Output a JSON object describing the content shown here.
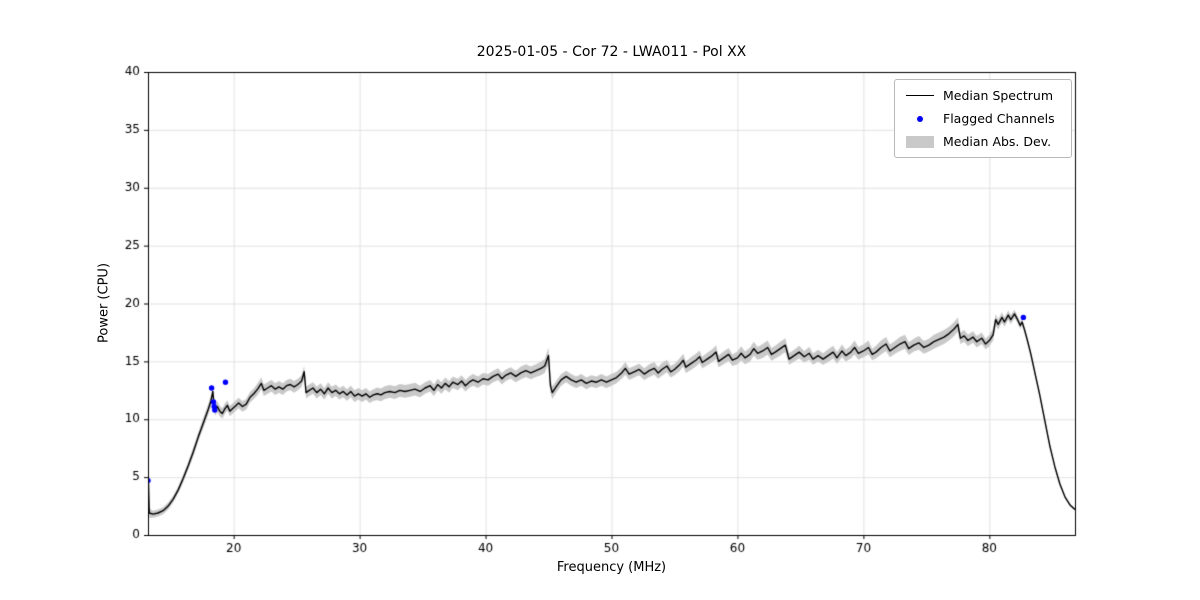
{
  "figure": {
    "title": "2025-01-05 - Cor 72 - LWA011 - Pol XX"
  },
  "chart_data": {
    "type": "line",
    "title": "2025-01-05 - Cor 72 - LWA011 - Pol XX",
    "xlabel": "Frequency (MHz)",
    "ylabel": "Power (CPU)",
    "xlim": [
      13.2,
      86.8
    ],
    "ylim": [
      0,
      40
    ],
    "xticks": [
      20,
      30,
      40,
      50,
      60,
      70,
      80
    ],
    "yticks": [
      0,
      5,
      10,
      15,
      20,
      25,
      30,
      35,
      40
    ],
    "grid": true,
    "grid_color": "#dcdcdc",
    "legend_position": "upper right",
    "series": [
      {
        "name": "Median Spectrum",
        "type": "line",
        "color": "#000000",
        "points": [
          [
            13.0,
            1.8,
            0.3
          ],
          [
            13.1,
            1.7,
            0.3
          ],
          [
            13.2,
            6.2,
            1.3
          ],
          [
            13.3,
            1.9,
            0.4
          ],
          [
            13.6,
            1.8,
            0.3
          ],
          [
            14.0,
            1.9,
            0.3
          ],
          [
            14.4,
            2.1,
            0.3
          ],
          [
            14.8,
            2.5,
            0.3
          ],
          [
            15.2,
            3.1,
            0.3
          ],
          [
            15.6,
            3.9,
            0.3
          ],
          [
            16.0,
            4.9,
            0.35
          ],
          [
            16.4,
            6.0,
            0.35
          ],
          [
            16.8,
            7.2,
            0.4
          ],
          [
            17.2,
            8.5,
            0.4
          ],
          [
            17.6,
            9.7,
            0.45
          ],
          [
            18.0,
            10.9,
            0.45
          ],
          [
            18.2,
            11.6,
            0.5
          ],
          [
            18.35,
            12.4,
            0.5
          ],
          [
            18.45,
            11.2,
            0.5
          ],
          [
            18.55,
            10.8,
            0.5
          ],
          [
            18.7,
            11.1,
            0.45
          ],
          [
            18.9,
            10.7,
            0.45
          ],
          [
            19.1,
            10.5,
            0.45
          ],
          [
            19.3,
            10.9,
            0.45
          ],
          [
            19.5,
            11.2,
            0.45
          ],
          [
            19.7,
            10.7,
            0.45
          ],
          [
            19.9,
            10.9,
            0.45
          ],
          [
            20.1,
            11.1,
            0.45
          ],
          [
            20.4,
            11.4,
            0.45
          ],
          [
            20.7,
            11.1,
            0.45
          ],
          [
            21.0,
            11.3,
            0.45
          ],
          [
            21.3,
            11.9,
            0.45
          ],
          [
            21.6,
            12.2,
            0.45
          ],
          [
            21.9,
            12.6,
            0.5
          ],
          [
            22.2,
            13.1,
            0.5
          ],
          [
            22.4,
            12.5,
            0.5
          ],
          [
            22.7,
            12.7,
            0.5
          ],
          [
            23.0,
            12.9,
            0.5
          ],
          [
            23.3,
            12.6,
            0.5
          ],
          [
            23.6,
            12.8,
            0.5
          ],
          [
            23.9,
            12.6,
            0.5
          ],
          [
            24.2,
            12.9,
            0.5
          ],
          [
            24.5,
            13.0,
            0.5
          ],
          [
            24.8,
            12.8,
            0.5
          ],
          [
            25.1,
            13.0,
            0.5
          ],
          [
            25.4,
            13.3,
            0.5
          ],
          [
            25.6,
            14.1,
            0.5
          ],
          [
            25.75,
            12.3,
            0.5
          ],
          [
            26.0,
            12.5,
            0.5
          ],
          [
            26.3,
            12.7,
            0.5
          ],
          [
            26.6,
            12.3,
            0.5
          ],
          [
            26.9,
            12.6,
            0.5
          ],
          [
            27.2,
            12.2,
            0.5
          ],
          [
            27.5,
            12.7,
            0.5
          ],
          [
            27.8,
            12.3,
            0.5
          ],
          [
            28.1,
            12.5,
            0.5
          ],
          [
            28.4,
            12.2,
            0.5
          ],
          [
            28.7,
            12.4,
            0.5
          ],
          [
            29.0,
            12.1,
            0.5
          ],
          [
            29.3,
            12.4,
            0.5
          ],
          [
            29.6,
            12.0,
            0.5
          ],
          [
            29.9,
            12.2,
            0.5
          ],
          [
            30.2,
            12.0,
            0.5
          ],
          [
            30.5,
            12.2,
            0.5
          ],
          [
            30.8,
            11.9,
            0.5
          ],
          [
            31.1,
            12.1,
            0.5
          ],
          [
            31.4,
            12.2,
            0.55
          ],
          [
            31.7,
            12.1,
            0.55
          ],
          [
            32.0,
            12.3,
            0.55
          ],
          [
            32.4,
            12.4,
            0.55
          ],
          [
            32.8,
            12.3,
            0.55
          ],
          [
            33.2,
            12.5,
            0.55
          ],
          [
            33.6,
            12.4,
            0.55
          ],
          [
            34.0,
            12.5,
            0.55
          ],
          [
            34.4,
            12.6,
            0.55
          ],
          [
            34.8,
            12.4,
            0.5
          ],
          [
            35.2,
            12.7,
            0.5
          ],
          [
            35.6,
            12.9,
            0.5
          ],
          [
            35.9,
            12.5,
            0.5
          ],
          [
            36.2,
            13.0,
            0.5
          ],
          [
            36.5,
            12.7,
            0.5
          ],
          [
            36.8,
            13.1,
            0.5
          ],
          [
            37.1,
            12.8,
            0.5
          ],
          [
            37.4,
            13.2,
            0.5
          ],
          [
            37.8,
            13.0,
            0.5
          ],
          [
            38.1,
            13.3,
            0.5
          ],
          [
            38.4,
            12.9,
            0.5
          ],
          [
            38.7,
            13.2,
            0.5
          ],
          [
            39.0,
            13.4,
            0.5
          ],
          [
            39.4,
            13.2,
            0.5
          ],
          [
            39.8,
            13.5,
            0.5
          ],
          [
            40.2,
            13.4,
            0.5
          ],
          [
            40.6,
            13.7,
            0.5
          ],
          [
            41.0,
            13.9,
            0.5
          ],
          [
            41.3,
            13.5,
            0.5
          ],
          [
            41.6,
            13.8,
            0.5
          ],
          [
            42.0,
            14.0,
            0.5
          ],
          [
            42.4,
            13.7,
            0.5
          ],
          [
            42.8,
            14.0,
            0.55
          ],
          [
            43.2,
            14.2,
            0.55
          ],
          [
            43.6,
            14.0,
            0.55
          ],
          [
            44.0,
            14.2,
            0.55
          ],
          [
            44.4,
            14.4,
            0.6
          ],
          [
            44.7,
            14.6,
            0.6
          ],
          [
            45.0,
            15.5,
            0.7
          ],
          [
            45.15,
            12.9,
            0.6
          ],
          [
            45.3,
            12.3,
            0.55
          ],
          [
            45.6,
            12.8,
            0.5
          ],
          [
            46.0,
            13.4,
            0.5
          ],
          [
            46.4,
            13.7,
            0.5
          ],
          [
            46.8,
            13.4,
            0.5
          ],
          [
            47.2,
            13.2,
            0.5
          ],
          [
            47.6,
            13.4,
            0.5
          ],
          [
            48.0,
            13.1,
            0.5
          ],
          [
            48.4,
            13.3,
            0.5
          ],
          [
            48.8,
            13.2,
            0.5
          ],
          [
            49.2,
            13.4,
            0.5
          ],
          [
            49.6,
            13.2,
            0.5
          ],
          [
            50.0,
            13.4,
            0.5
          ],
          [
            50.4,
            13.6,
            0.5
          ],
          [
            50.8,
            14.0,
            0.5
          ],
          [
            51.1,
            14.4,
            0.55
          ],
          [
            51.4,
            13.9,
            0.5
          ],
          [
            51.8,
            14.1,
            0.5
          ],
          [
            52.2,
            14.3,
            0.5
          ],
          [
            52.6,
            13.9,
            0.5
          ],
          [
            53.0,
            14.2,
            0.55
          ],
          [
            53.4,
            14.4,
            0.55
          ],
          [
            53.7,
            14.0,
            0.5
          ],
          [
            54.0,
            14.3,
            0.55
          ],
          [
            54.4,
            14.6,
            0.55
          ],
          [
            54.7,
            14.1,
            0.5
          ],
          [
            55.0,
            14.3,
            0.5
          ],
          [
            55.4,
            14.7,
            0.55
          ],
          [
            55.7,
            15.1,
            0.55
          ],
          [
            55.9,
            14.5,
            0.5
          ],
          [
            56.3,
            14.8,
            0.55
          ],
          [
            56.7,
            15.1,
            0.55
          ],
          [
            57.0,
            15.4,
            0.55
          ],
          [
            57.2,
            14.9,
            0.5
          ],
          [
            57.6,
            15.2,
            0.55
          ],
          [
            58.0,
            15.5,
            0.55
          ],
          [
            58.3,
            15.8,
            0.6
          ],
          [
            58.5,
            15.0,
            0.5
          ],
          [
            58.9,
            15.3,
            0.55
          ],
          [
            59.3,
            15.6,
            0.55
          ],
          [
            59.6,
            15.1,
            0.5
          ],
          [
            60.0,
            15.3,
            0.55
          ],
          [
            60.3,
            15.7,
            0.6
          ],
          [
            60.6,
            15.3,
            0.55
          ],
          [
            61.0,
            15.6,
            0.6
          ],
          [
            61.3,
            16.1,
            0.6
          ],
          [
            61.6,
            15.7,
            0.55
          ],
          [
            62.0,
            15.9,
            0.6
          ],
          [
            62.4,
            16.2,
            0.6
          ],
          [
            62.7,
            15.6,
            0.55
          ],
          [
            63.0,
            15.8,
            0.55
          ],
          [
            63.4,
            16.1,
            0.6
          ],
          [
            63.8,
            16.4,
            0.6
          ],
          [
            64.1,
            15.2,
            0.5
          ],
          [
            64.5,
            15.5,
            0.5
          ],
          [
            64.9,
            15.8,
            0.55
          ],
          [
            65.3,
            15.4,
            0.5
          ],
          [
            65.7,
            15.7,
            0.55
          ],
          [
            66.0,
            15.2,
            0.5
          ],
          [
            66.4,
            15.5,
            0.5
          ],
          [
            66.8,
            15.2,
            0.5
          ],
          [
            67.2,
            15.5,
            0.55
          ],
          [
            67.6,
            15.8,
            0.55
          ],
          [
            67.9,
            15.3,
            0.5
          ],
          [
            68.3,
            15.9,
            0.55
          ],
          [
            68.6,
            15.5,
            0.5
          ],
          [
            69.0,
            15.8,
            0.55
          ],
          [
            69.3,
            16.2,
            0.6
          ],
          [
            69.6,
            15.7,
            0.55
          ],
          [
            70.0,
            15.9,
            0.55
          ],
          [
            70.4,
            16.2,
            0.6
          ],
          [
            70.7,
            15.6,
            0.5
          ],
          [
            71.0,
            15.8,
            0.55
          ],
          [
            71.4,
            16.2,
            0.6
          ],
          [
            71.8,
            16.5,
            0.6
          ],
          [
            72.1,
            15.9,
            0.55
          ],
          [
            72.5,
            16.2,
            0.55
          ],
          [
            72.9,
            16.5,
            0.6
          ],
          [
            73.3,
            16.7,
            0.6
          ],
          [
            73.6,
            16.1,
            0.55
          ],
          [
            74.0,
            16.4,
            0.55
          ],
          [
            74.4,
            16.6,
            0.6
          ],
          [
            74.8,
            16.2,
            0.55
          ],
          [
            75.2,
            16.4,
            0.55
          ],
          [
            75.6,
            16.7,
            0.6
          ],
          [
            76.0,
            16.9,
            0.6
          ],
          [
            76.4,
            17.1,
            0.6
          ],
          [
            76.8,
            17.4,
            0.6
          ],
          [
            77.2,
            17.8,
            0.6
          ],
          [
            77.5,
            18.2,
            0.6
          ],
          [
            77.7,
            17.0,
            0.5
          ],
          [
            78.0,
            17.2,
            0.5
          ],
          [
            78.3,
            16.8,
            0.5
          ],
          [
            78.7,
            17.1,
            0.5
          ],
          [
            79.0,
            16.7,
            0.5
          ],
          [
            79.4,
            17.0,
            0.5
          ],
          [
            79.7,
            16.5,
            0.45
          ],
          [
            80.0,
            16.8,
            0.5
          ],
          [
            80.3,
            17.3,
            0.5
          ],
          [
            80.5,
            18.6,
            0.5
          ],
          [
            80.7,
            18.2,
            0.45
          ],
          [
            81.0,
            18.8,
            0.45
          ],
          [
            81.2,
            18.4,
            0.4
          ],
          [
            81.5,
            19.0,
            0.4
          ],
          [
            81.7,
            18.6,
            0.4
          ],
          [
            82.0,
            19.1,
            0.35
          ],
          [
            82.2,
            18.7,
            0.3
          ],
          [
            82.45,
            18.1,
            0.3
          ],
          [
            82.6,
            18.4,
            0.3
          ],
          [
            82.8,
            17.7,
            0.3
          ],
          [
            83.0,
            16.9,
            0.3
          ],
          [
            83.3,
            15.6,
            0.25
          ],
          [
            83.6,
            14.1,
            0.25
          ],
          [
            84.0,
            12.1,
            0.2
          ],
          [
            84.4,
            9.9,
            0.2
          ],
          [
            84.8,
            7.7,
            0.2
          ],
          [
            85.2,
            5.9,
            0.15
          ],
          [
            85.6,
            4.4,
            0.15
          ],
          [
            86.0,
            3.3,
            0.1
          ],
          [
            86.4,
            2.6,
            0.1
          ],
          [
            86.8,
            2.2,
            0.1
          ]
        ]
      },
      {
        "name": "Flagged Channels",
        "type": "scatter",
        "color": "#0000ff",
        "points": [
          [
            13.2,
            4.7
          ],
          [
            18.25,
            12.7
          ],
          [
            18.4,
            11.5
          ],
          [
            18.45,
            11.1
          ],
          [
            18.5,
            10.8
          ],
          [
            19.35,
            13.2
          ],
          [
            82.7,
            18.8
          ]
        ]
      },
      {
        "name": "Median Abs. Dev.",
        "type": "band",
        "color": "#c9c9c9"
      }
    ]
  }
}
